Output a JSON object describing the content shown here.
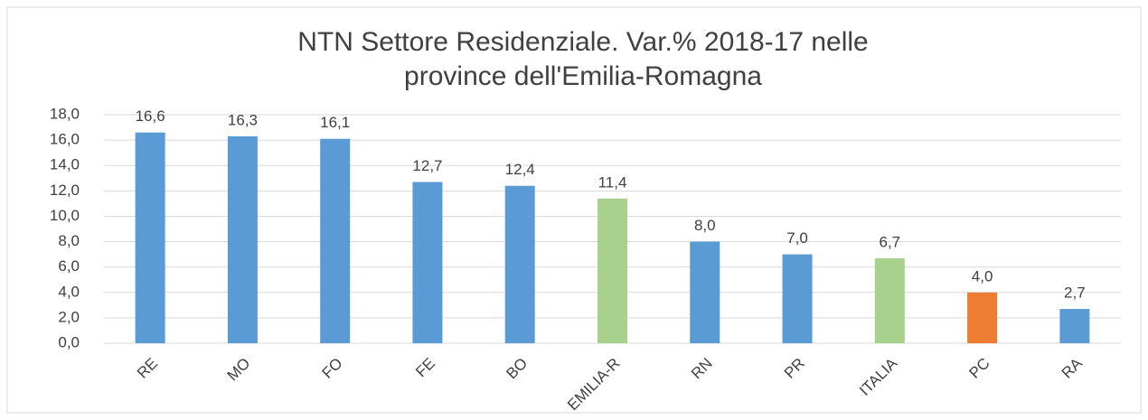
{
  "chart_data": {
    "type": "bar",
    "title": [
      "NTN Settore Residenziale. Var.% 2018-17 nelle",
      "province dell'Emilia-Romagna"
    ],
    "categories": [
      "RE",
      "MO",
      "FO",
      "FE",
      "BO",
      "EMILIA-R",
      "RN",
      "PR",
      "ITALIA",
      "PC",
      "RA"
    ],
    "values": [
      16.6,
      16.3,
      16.1,
      12.7,
      12.4,
      11.4,
      8.0,
      7.0,
      6.7,
      4.0,
      2.7
    ],
    "value_labels": [
      "16,6",
      "16,3",
      "16,1",
      "12,7",
      "12,4",
      "11,4",
      "8,0",
      "7,0",
      "6,7",
      "4,0",
      "2,7"
    ],
    "colors": [
      "#5b9bd5",
      "#5b9bd5",
      "#5b9bd5",
      "#5b9bd5",
      "#5b9bd5",
      "#a9d18e",
      "#5b9bd5",
      "#5b9bd5",
      "#a9d18e",
      "#ed7d31",
      "#5b9bd5"
    ],
    "ylim": [
      0,
      18
    ],
    "yticks": [
      {
        "value": 0,
        "label": "0,0"
      },
      {
        "value": 2,
        "label": "2,0"
      },
      {
        "value": 4,
        "label": "4,0"
      },
      {
        "value": 6,
        "label": "6,0"
      },
      {
        "value": 8,
        "label": "8,0"
      },
      {
        "value": 10,
        "label": "10,0"
      },
      {
        "value": 12,
        "label": "12,0"
      },
      {
        "value": 14,
        "label": "14,0"
      },
      {
        "value": 16,
        "label": "16,0"
      },
      {
        "value": 18,
        "label": "18,0"
      }
    ],
    "grid": true
  }
}
